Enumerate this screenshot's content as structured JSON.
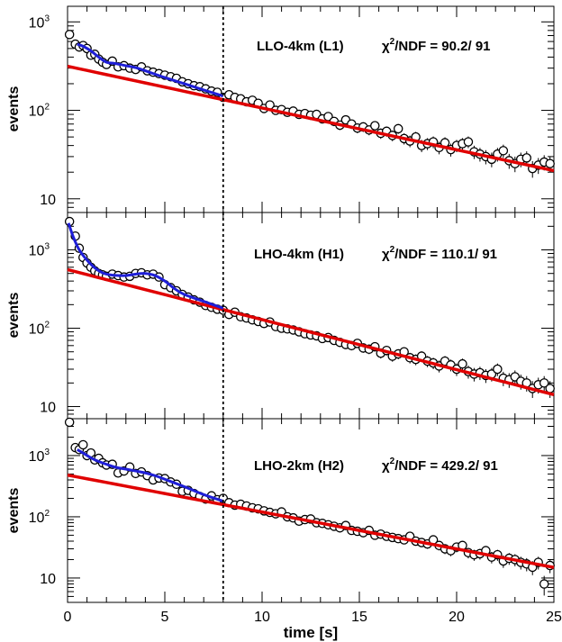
{
  "chart_data": {
    "type": "scatter",
    "xlabel": "time [s]",
    "xlim": [
      0,
      25
    ],
    "x_ticks": [
      "0",
      "5",
      "10",
      "15",
      "20",
      "25"
    ],
    "vline_x": 8,
    "colors": {
      "fit_total": "#1f1fd8",
      "fit_background": "#e00000",
      "points": "#000000",
      "vline": "#000000"
    },
    "panels": [
      {
        "label": "LLO-4km (L1)",
        "chi_prefix": "χ",
        "chi_sup": "2",
        "chi_rest": "/NDF =  90.2/ 91",
        "ylabel": "events",
        "yscale": "log",
        "ylim": [
          7,
          1500
        ],
        "y_ticks": [
          {
            "base": "10",
            "exp": "",
            "value": 10
          },
          {
            "base": "10",
            "exp": "2",
            "value": 100
          },
          {
            "base": "10",
            "exp": "3",
            "value": 1000
          }
        ],
        "background_fit": {
          "a": 315,
          "tau": 9.2
        },
        "total_fit": {
          "x": [
            0.5,
            0.8,
            1.2,
            1.6,
            2.0,
            2.4,
            3.0,
            3.6,
            4.2,
            5.0,
            6.0,
            7.0,
            8.0
          ],
          "y": [
            560,
            530,
            470,
            400,
            350,
            340,
            320,
            300,
            270,
            235,
            200,
            170,
            145
          ]
        },
        "points": {
          "x": [
            0.1,
            0.4,
            0.6,
            0.8,
            1.0,
            1.2,
            1.4,
            1.6,
            1.8,
            2.0,
            2.3,
            2.6,
            2.9,
            3.2,
            3.5,
            3.8,
            4.1,
            4.4,
            4.7,
            5.0,
            5.3,
            5.6,
            5.9,
            6.2,
            6.5,
            6.8,
            7.1,
            7.4,
            7.7,
            8.0,
            8.3,
            8.6,
            8.9,
            9.2,
            9.5,
            9.8,
            10.1,
            10.4,
            10.7,
            11.0,
            11.3,
            11.6,
            11.9,
            12.2,
            12.5,
            12.8,
            13.1,
            13.4,
            13.7,
            14.0,
            14.3,
            14.6,
            14.9,
            15.2,
            15.5,
            15.8,
            16.1,
            16.4,
            16.7,
            17.0,
            17.3,
            17.6,
            17.9,
            18.2,
            18.5,
            18.8,
            19.1,
            19.4,
            19.7,
            20.0,
            20.3,
            20.6,
            20.9,
            21.2,
            21.5,
            21.8,
            22.1,
            22.4,
            22.7,
            23.0,
            23.3,
            23.6,
            23.9,
            24.2,
            24.5,
            24.8
          ],
          "y": [
            720,
            560,
            520,
            540,
            500,
            420,
            430,
            380,
            350,
            330,
            360,
            310,
            320,
            300,
            290,
            310,
            280,
            270,
            260,
            250,
            240,
            230,
            210,
            200,
            190,
            185,
            175,
            165,
            160,
            140,
            150,
            140,
            135,
            125,
            130,
            120,
            105,
            115,
            100,
            102,
            95,
            98,
            90,
            92,
            88,
            90,
            80,
            85,
            75,
            68,
            78,
            70,
            63,
            65,
            60,
            67,
            55,
            58,
            52,
            62,
            48,
            45,
            50,
            40,
            42,
            44,
            38,
            43,
            36,
            40,
            42,
            44,
            34,
            32,
            30,
            28,
            32,
            35,
            27,
            25,
            28,
            29,
            22,
            24,
            26,
            25
          ]
        }
      },
      {
        "label": "LHO-4km (H1)",
        "chi_prefix": "χ",
        "chi_sup": "2",
        "chi_rest": "/NDF = 110.1/ 91",
        "ylabel": "events",
        "yscale": "log",
        "ylim": [
          7,
          3000
        ],
        "y_ticks": [
          {
            "base": "10",
            "exp": "",
            "value": 10
          },
          {
            "base": "10",
            "exp": "2",
            "value": 100
          },
          {
            "base": "10",
            "exp": "3",
            "value": 1000
          }
        ],
        "background_fit": {
          "a": 560,
          "tau": 6.8
        },
        "total_fit": {
          "x": [
            0.05,
            0.3,
            0.6,
            1.0,
            1.4,
            1.8,
            2.2,
            2.6,
            3.0,
            3.5,
            4.0,
            4.5,
            5.0,
            5.5,
            6.0,
            7.0,
            8.0
          ],
          "y": [
            2200,
            1450,
            1000,
            740,
            590,
            510,
            480,
            470,
            470,
            490,
            500,
            470,
            400,
            320,
            270,
            220,
            180
          ]
        },
        "points": {
          "x": [
            0.1,
            0.4,
            0.6,
            0.8,
            1.0,
            1.2,
            1.4,
            1.6,
            1.8,
            2.0,
            2.3,
            2.6,
            2.9,
            3.2,
            3.5,
            3.8,
            4.1,
            4.4,
            4.7,
            5.0,
            5.3,
            5.6,
            5.9,
            6.2,
            6.5,
            6.8,
            7.1,
            7.4,
            7.7,
            8.0,
            8.3,
            8.6,
            8.9,
            9.2,
            9.5,
            9.8,
            10.1,
            10.4,
            10.7,
            11.0,
            11.3,
            11.6,
            11.9,
            12.2,
            12.5,
            12.8,
            13.1,
            13.4,
            13.7,
            14.0,
            14.3,
            14.6,
            14.9,
            15.2,
            15.5,
            15.8,
            16.1,
            16.4,
            16.7,
            17.0,
            17.3,
            17.6,
            17.9,
            18.2,
            18.5,
            18.8,
            19.1,
            19.4,
            19.7,
            20.0,
            20.3,
            20.6,
            20.9,
            21.2,
            21.5,
            21.8,
            22.1,
            22.4,
            22.7,
            23.0,
            23.3,
            23.6,
            23.9,
            24.2,
            24.5,
            24.8
          ],
          "y": [
            2300,
            1500,
            1050,
            800,
            680,
            600,
            540,
            500,
            480,
            460,
            490,
            470,
            450,
            460,
            500,
            510,
            480,
            490,
            450,
            360,
            330,
            300,
            270,
            250,
            230,
            215,
            195,
            185,
            175,
            170,
            150,
            160,
            140,
            135,
            128,
            122,
            115,
            120,
            105,
            100,
            98,
            95,
            90,
            85,
            82,
            80,
            74,
            76,
            70,
            66,
            62,
            60,
            64,
            56,
            54,
            58,
            48,
            52,
            44,
            47,
            50,
            42,
            40,
            44,
            38,
            36,
            33,
            38,
            34,
            30,
            35,
            28,
            26,
            27,
            25,
            26,
            30,
            23,
            22,
            24,
            21,
            20,
            17,
            19,
            20,
            17
          ]
        }
      },
      {
        "label": "LHO-2km (H2)",
        "chi_prefix": "χ",
        "chi_sup": "2",
        "chi_rest": "/NDF = 429.2/ 91",
        "ylabel": "events",
        "yscale": "log",
        "ylim": [
          4,
          4000
        ],
        "y_ticks": [
          {
            "base": "10",
            "exp": "",
            "value": 10
          },
          {
            "base": "10",
            "exp": "2",
            "value": 100
          },
          {
            "base": "10",
            "exp": "3",
            "value": 1000
          }
        ],
        "background_fit": {
          "a": 480,
          "tau": 7.2
        },
        "total_fit": {
          "x": [
            0.5,
            0.8,
            1.2,
            1.6,
            2.0,
            2.5,
            3.0,
            3.5,
            4.0,
            4.5,
            5.0,
            6.0,
            7.0,
            8.0
          ],
          "y": [
            1250,
            1100,
            920,
            800,
            720,
            640,
            600,
            560,
            520,
            470,
            410,
            310,
            230,
            180
          ]
        },
        "points": {
          "x": [
            0.1,
            0.4,
            0.6,
            0.8,
            1.0,
            1.2,
            1.4,
            1.6,
            1.8,
            2.0,
            2.3,
            2.6,
            2.9,
            3.2,
            3.5,
            3.8,
            4.1,
            4.4,
            4.7,
            5.0,
            5.3,
            5.6,
            5.9,
            6.2,
            6.5,
            6.8,
            7.1,
            7.4,
            7.7,
            8.0,
            8.3,
            8.6,
            8.9,
            9.2,
            9.5,
            9.8,
            10.1,
            10.4,
            10.7,
            11.0,
            11.3,
            11.6,
            11.9,
            12.2,
            12.5,
            12.8,
            13.1,
            13.4,
            13.7,
            14.0,
            14.3,
            14.6,
            14.9,
            15.2,
            15.5,
            15.8,
            16.1,
            16.4,
            16.7,
            17.0,
            17.3,
            17.6,
            17.9,
            18.2,
            18.5,
            18.8,
            19.1,
            19.4,
            19.7,
            20.0,
            20.3,
            20.6,
            20.9,
            21.2,
            21.5,
            21.8,
            22.1,
            22.4,
            22.7,
            23.0,
            23.3,
            23.6,
            23.9,
            24.2,
            24.5,
            24.8
          ],
          "y": [
            3500,
            1350,
            1250,
            1500,
            1000,
            1100,
            850,
            900,
            760,
            700,
            720,
            520,
            560,
            650,
            510,
            540,
            470,
            400,
            430,
            420,
            370,
            340,
            260,
            270,
            240,
            215,
            195,
            220,
            190,
            200,
            170,
            155,
            160,
            150,
            140,
            135,
            125,
            118,
            112,
            120,
            100,
            96,
            85,
            90,
            92,
            80,
            78,
            74,
            70,
            66,
            72,
            60,
            58,
            55,
            60,
            50,
            52,
            48,
            46,
            44,
            42,
            48,
            40,
            38,
            36,
            42,
            34,
            30,
            28,
            32,
            34,
            26,
            24,
            25,
            28,
            22,
            24,
            19,
            21,
            20,
            18,
            17,
            15,
            18,
            8,
            16
          ]
        }
      }
    ]
  }
}
